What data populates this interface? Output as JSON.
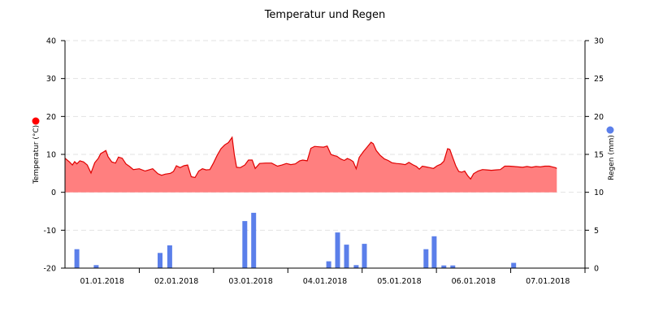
{
  "chart_data": {
    "type": "area",
    "title": "Temperatur und Regen",
    "x_labels": [
      "01.01.2018",
      "02.01.2018",
      "03.01.2018",
      "04.01.2018",
      "05.01.2018",
      "06.01.2018",
      "07.01.2018"
    ],
    "x_range": [
      0,
      7
    ],
    "y_left": {
      "label": "Temperatur (°C)",
      "ticks": [
        "40",
        "30",
        "20",
        "10",
        "0",
        "-10",
        "-20"
      ],
      "range": [
        -20,
        40
      ],
      "marker_color": "#ff0000"
    },
    "y_right": {
      "label": "Regen (mm)",
      "ticks": [
        "30",
        "25",
        "20",
        "15",
        "10",
        "5",
        "0"
      ],
      "range": [
        0,
        30
      ],
      "marker_color": "#5b7fea"
    },
    "grid": true,
    "series": [
      {
        "kind": "area",
        "axis": "left",
        "fill_color": "#ff7f7f",
        "line_color": "#e00000",
        "points": [
          [
            0.0,
            9.0
          ],
          [
            0.06,
            8.0
          ],
          [
            0.1,
            7.2
          ],
          [
            0.13,
            8.1
          ],
          [
            0.16,
            7.5
          ],
          [
            0.2,
            8.3
          ],
          [
            0.25,
            8.0
          ],
          [
            0.3,
            7.2
          ],
          [
            0.35,
            5.1
          ],
          [
            0.4,
            7.8
          ],
          [
            0.45,
            9.0
          ],
          [
            0.48,
            10.2
          ],
          [
            0.55,
            11.0
          ],
          [
            0.58,
            9.4
          ],
          [
            0.63,
            8.0
          ],
          [
            0.68,
            7.7
          ],
          [
            0.72,
            9.3
          ],
          [
            0.77,
            9.0
          ],
          [
            0.82,
            7.5
          ],
          [
            0.87,
            6.8
          ],
          [
            0.92,
            6.0
          ],
          [
            1.0,
            6.2
          ],
          [
            1.08,
            5.6
          ],
          [
            1.13,
            5.9
          ],
          [
            1.18,
            6.2
          ],
          [
            1.25,
            4.9
          ],
          [
            1.3,
            4.5
          ],
          [
            1.35,
            4.8
          ],
          [
            1.42,
            5.0
          ],
          [
            1.46,
            5.5
          ],
          [
            1.5,
            7.0
          ],
          [
            1.55,
            6.5
          ],
          [
            1.6,
            7.0
          ],
          [
            1.65,
            7.2
          ],
          [
            1.7,
            4.1
          ],
          [
            1.75,
            3.9
          ],
          [
            1.8,
            5.6
          ],
          [
            1.85,
            6.2
          ],
          [
            1.9,
            5.9
          ],
          [
            1.95,
            6.0
          ],
          [
            2.0,
            7.8
          ],
          [
            2.05,
            9.8
          ],
          [
            2.1,
            11.5
          ],
          [
            2.15,
            12.5
          ],
          [
            2.2,
            13.1
          ],
          [
            2.25,
            14.5
          ],
          [
            2.28,
            9.8
          ],
          [
            2.31,
            6.6
          ],
          [
            2.36,
            6.5
          ],
          [
            2.42,
            7.2
          ],
          [
            2.47,
            8.5
          ],
          [
            2.52,
            8.5
          ],
          [
            2.56,
            6.3
          ],
          [
            2.62,
            7.6
          ],
          [
            2.7,
            7.7
          ],
          [
            2.78,
            7.7
          ],
          [
            2.86,
            6.9
          ],
          [
            2.92,
            7.2
          ],
          [
            2.98,
            7.6
          ],
          [
            3.04,
            7.3
          ],
          [
            3.1,
            7.5
          ],
          [
            3.16,
            8.3
          ],
          [
            3.2,
            8.5
          ],
          [
            3.26,
            8.3
          ],
          [
            3.31,
            11.6
          ],
          [
            3.36,
            12.1
          ],
          [
            3.42,
            12.0
          ],
          [
            3.48,
            11.9
          ],
          [
            3.53,
            12.2
          ],
          [
            3.58,
            10.0
          ],
          [
            3.62,
            9.7
          ],
          [
            3.66,
            9.5
          ],
          [
            3.71,
            8.8
          ],
          [
            3.76,
            8.4
          ],
          [
            3.8,
            8.9
          ],
          [
            3.84,
            8.6
          ],
          [
            3.88,
            8.1
          ],
          [
            3.92,
            6.2
          ],
          [
            3.96,
            9.2
          ],
          [
            4.02,
            10.8
          ],
          [
            4.07,
            12.0
          ],
          [
            4.12,
            13.2
          ],
          [
            4.15,
            12.8
          ],
          [
            4.19,
            11.0
          ],
          [
            4.24,
            9.8
          ],
          [
            4.3,
            8.8
          ],
          [
            4.35,
            8.4
          ],
          [
            4.4,
            7.8
          ],
          [
            4.46,
            7.6
          ],
          [
            4.52,
            7.5
          ],
          [
            4.58,
            7.3
          ],
          [
            4.63,
            7.9
          ],
          [
            4.68,
            7.3
          ],
          [
            4.73,
            6.8
          ],
          [
            4.77,
            6.1
          ],
          [
            4.81,
            6.9
          ],
          [
            4.86,
            6.7
          ],
          [
            4.91,
            6.5
          ],
          [
            4.96,
            6.3
          ],
          [
            5.01,
            7.0
          ],
          [
            5.06,
            7.4
          ],
          [
            5.1,
            8.2
          ],
          [
            5.15,
            11.5
          ],
          [
            5.18,
            11.3
          ],
          [
            5.22,
            9.1
          ],
          [
            5.26,
            7.0
          ],
          [
            5.3,
            5.5
          ],
          [
            5.34,
            5.3
          ],
          [
            5.38,
            5.6
          ],
          [
            5.42,
            4.4
          ],
          [
            5.46,
            3.5
          ],
          [
            5.5,
            4.9
          ],
          [
            5.56,
            5.6
          ],
          [
            5.62,
            6.0
          ],
          [
            5.68,
            5.9
          ],
          [
            5.74,
            5.8
          ],
          [
            5.8,
            5.9
          ],
          [
            5.86,
            6.0
          ],
          [
            5.92,
            6.9
          ],
          [
            5.98,
            6.9
          ],
          [
            6.04,
            6.8
          ],
          [
            6.1,
            6.7
          ],
          [
            6.16,
            6.6
          ],
          [
            6.22,
            6.8
          ],
          [
            6.28,
            6.6
          ],
          [
            6.34,
            6.8
          ],
          [
            6.4,
            6.7
          ],
          [
            6.46,
            6.9
          ],
          [
            6.52,
            6.9
          ],
          [
            6.56,
            6.7
          ],
          [
            6.6,
            6.5
          ],
          [
            6.62,
            6.3
          ]
        ]
      },
      {
        "kind": "bar",
        "axis": "right",
        "color": "#5b7fea",
        "points": [
          [
            0.16,
            2.5
          ],
          [
            0.42,
            0.4
          ],
          [
            1.28,
            2.0
          ],
          [
            1.41,
            3.0
          ],
          [
            2.42,
            6.2
          ],
          [
            2.54,
            7.3
          ],
          [
            3.55,
            0.9
          ],
          [
            3.67,
            4.7
          ],
          [
            3.79,
            3.1
          ],
          [
            3.92,
            0.4
          ],
          [
            4.03,
            3.2
          ],
          [
            4.86,
            2.5
          ],
          [
            4.97,
            4.2
          ],
          [
            5.1,
            0.35
          ],
          [
            5.22,
            0.35
          ],
          [
            6.04,
            0.7
          ]
        ]
      }
    ]
  }
}
